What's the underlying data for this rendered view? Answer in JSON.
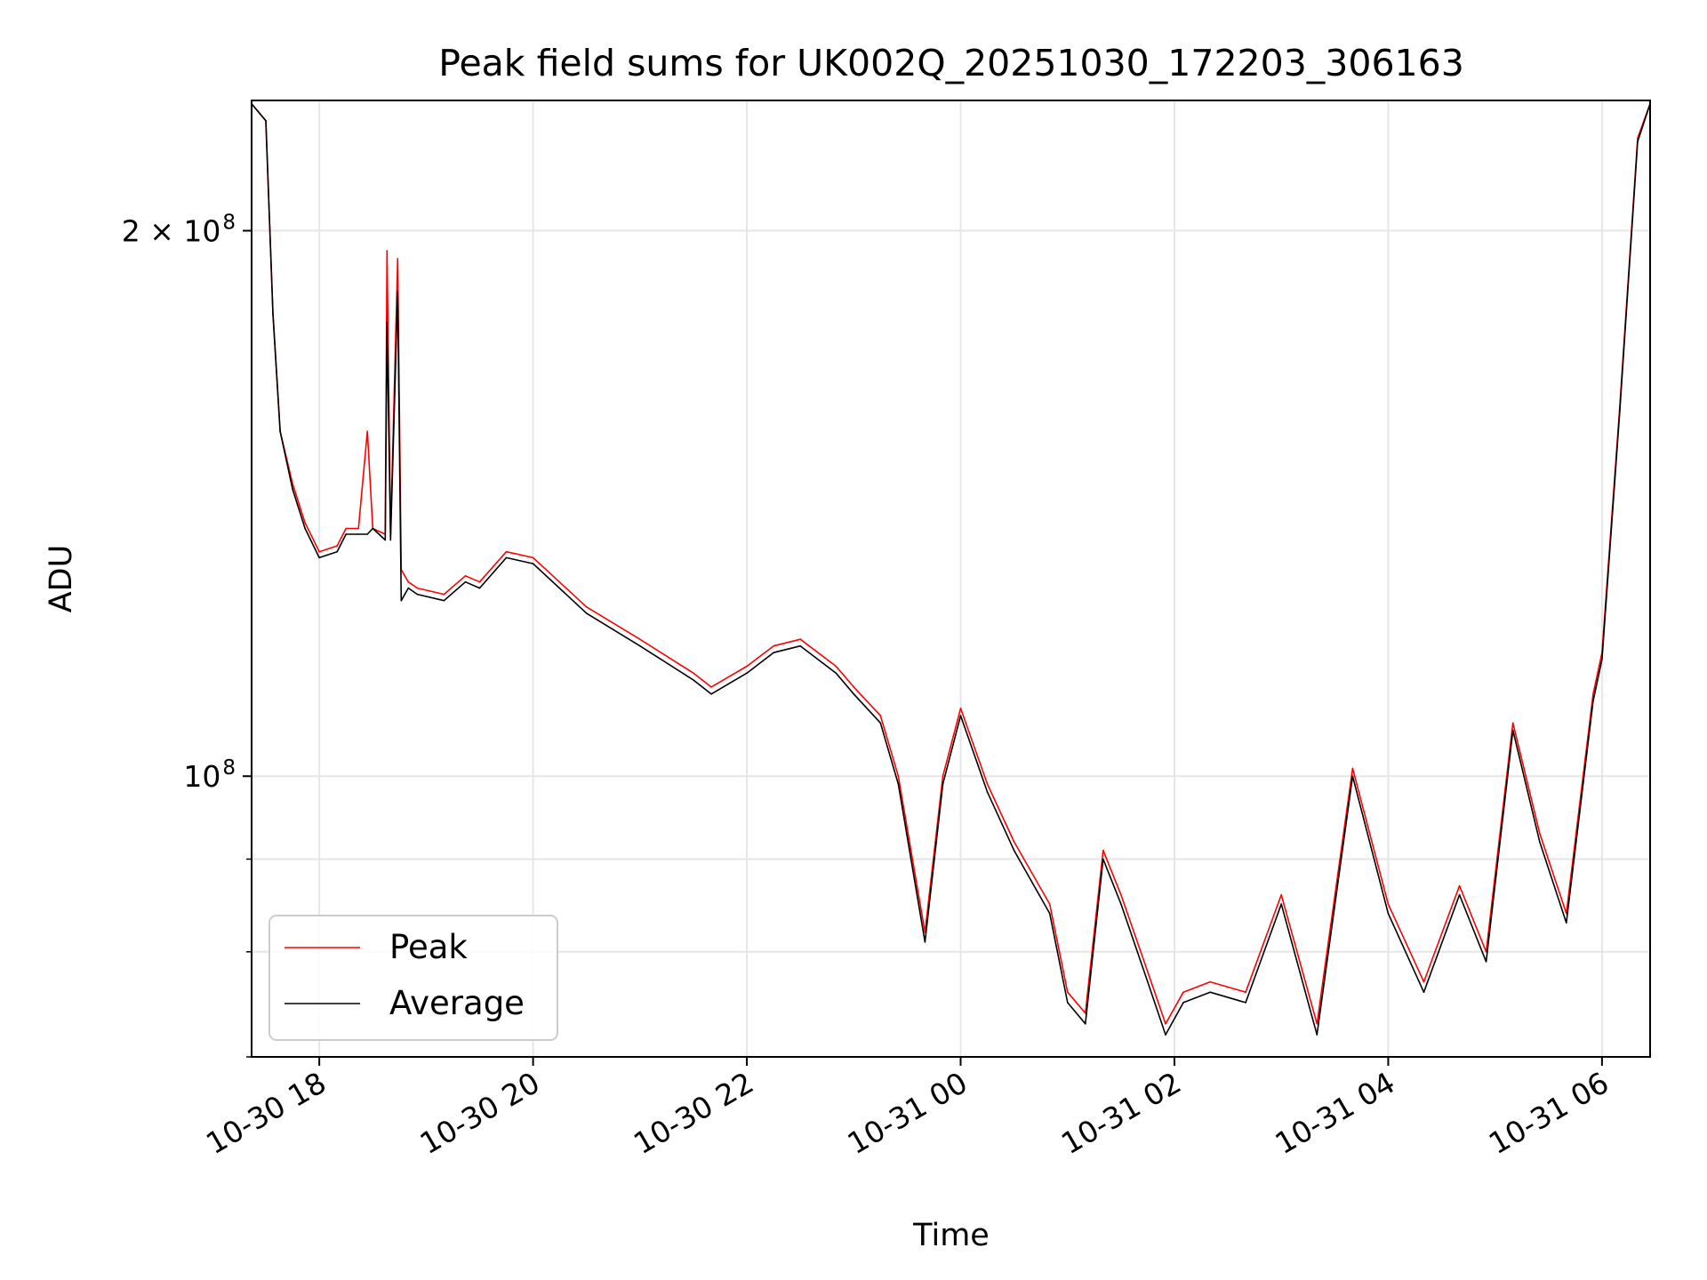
{
  "chart_data": {
    "type": "line",
    "title": "Peak field sums for UK002Q_20251030_172203_306163",
    "xlabel": "Time",
    "ylabel": "ADU",
    "yscale": "log",
    "xlim": [
      "2025-10-30 17:22",
      "2025-10-31 06:27"
    ],
    "ylim": [
      70000000,
      236000000
    ],
    "x_ticks": [
      "10-30 18",
      "10-30 20",
      "10-30 22",
      "10-31 00",
      "10-31 02",
      "10-31 04",
      "10-31 06"
    ],
    "y_ticks": [
      {
        "value": 100000000,
        "label_base": "10",
        "label_exp": "8"
      },
      {
        "value": 200000000,
        "label_base": "2 × 10",
        "label_exp": "8"
      }
    ],
    "y_minor_ticks": [
      70000000,
      80000000,
      90000000
    ],
    "grid": true,
    "legend_position": "lower left",
    "colors": {
      "Peak": "#ff0000",
      "Average": "#000000"
    },
    "series": [
      {
        "name": "Peak",
        "x": [
          "2025-10-30 17:22",
          "2025-10-30 17:30",
          "2025-10-30 17:34",
          "2025-10-30 17:38",
          "2025-10-30 17:45",
          "2025-10-30 17:52",
          "2025-10-30 18:00",
          "2025-10-30 18:10",
          "2025-10-30 18:15",
          "2025-10-30 18:22",
          "2025-10-30 18:27",
          "2025-10-30 18:30",
          "2025-10-30 18:37",
          "2025-10-30 18:38",
          "2025-10-30 18:40",
          "2025-10-30 18:44",
          "2025-10-30 18:46",
          "2025-10-30 18:50",
          "2025-10-30 18:55",
          "2025-10-30 19:10",
          "2025-10-30 19:22",
          "2025-10-30 19:30",
          "2025-10-30 19:45",
          "2025-10-30 20:00",
          "2025-10-30 20:30",
          "2025-10-30 21:00",
          "2025-10-30 21:30",
          "2025-10-30 21:40",
          "2025-10-30 22:00",
          "2025-10-30 22:15",
          "2025-10-30 22:30",
          "2025-10-30 22:50",
          "2025-10-30 23:00",
          "2025-10-30 23:15",
          "2025-10-30 23:25",
          "2025-10-30 23:40",
          "2025-10-30 23:50",
          "2025-10-31 00:00",
          "2025-10-31 00:15",
          "2025-10-31 00:30",
          "2025-10-31 00:50",
          "2025-10-31 01:00",
          "2025-10-31 01:10",
          "2025-10-31 01:20",
          "2025-10-31 01:30",
          "2025-10-31 01:45",
          "2025-10-31 01:55",
          "2025-10-31 02:05",
          "2025-10-31 02:20",
          "2025-10-31 02:40",
          "2025-10-31 03:00",
          "2025-10-31 03:20",
          "2025-10-31 03:40",
          "2025-10-31 04:00",
          "2025-10-31 04:20",
          "2025-10-31 04:40",
          "2025-10-31 04:55",
          "2025-10-31 05:10",
          "2025-10-31 05:25",
          "2025-10-31 05:40",
          "2025-10-31 05:55",
          "2025-10-31 06:00",
          "2025-10-31 06:10",
          "2025-10-31 06:20",
          "2025-10-31 06:27"
        ],
        "y": [
          235000000,
          230000000,
          180000000,
          155000000,
          145000000,
          138000000,
          133000000,
          134000000,
          137000000,
          137000000,
          155000000,
          137000000,
          136000000,
          195000000,
          136000000,
          193000000,
          130000000,
          128000000,
          127000000,
          126000000,
          129000000,
          128000000,
          133000000,
          132000000,
          124000000,
          119000000,
          114000000,
          112000000,
          115000000,
          118000000,
          119000000,
          115000000,
          112000000,
          108000000,
          100000000,
          82000000,
          100000000,
          109000000,
          99000000,
          92000000,
          85000000,
          76000000,
          74000000,
          91000000,
          86000000,
          78000000,
          73000000,
          76000000,
          77000000,
          76000000,
          86000000,
          73000000,
          101000000,
          85000000,
          77000000,
          87000000,
          80000000,
          107000000,
          93000000,
          84000000,
          111000000,
          117000000,
          160000000,
          225000000,
          235000000
        ]
      },
      {
        "name": "Average",
        "x": [
          "2025-10-30 17:22",
          "2025-10-30 17:30",
          "2025-10-30 17:34",
          "2025-10-30 17:38",
          "2025-10-30 17:45",
          "2025-10-30 17:52",
          "2025-10-30 18:00",
          "2025-10-30 18:10",
          "2025-10-30 18:15",
          "2025-10-30 18:22",
          "2025-10-30 18:27",
          "2025-10-30 18:30",
          "2025-10-30 18:37",
          "2025-10-30 18:38",
          "2025-10-30 18:40",
          "2025-10-30 18:44",
          "2025-10-30 18:46",
          "2025-10-30 18:50",
          "2025-10-30 18:55",
          "2025-10-30 19:10",
          "2025-10-30 19:22",
          "2025-10-30 19:30",
          "2025-10-30 19:45",
          "2025-10-30 20:00",
          "2025-10-30 20:30",
          "2025-10-30 21:00",
          "2025-10-30 21:30",
          "2025-10-30 21:40",
          "2025-10-30 22:00",
          "2025-10-30 22:15",
          "2025-10-30 22:30",
          "2025-10-30 22:50",
          "2025-10-30 23:00",
          "2025-10-30 23:15",
          "2025-10-30 23:25",
          "2025-10-30 23:40",
          "2025-10-30 23:50",
          "2025-10-31 00:00",
          "2025-10-31 00:15",
          "2025-10-31 00:30",
          "2025-10-31 00:50",
          "2025-10-31 01:00",
          "2025-10-31 01:10",
          "2025-10-31 01:20",
          "2025-10-31 01:30",
          "2025-10-31 01:45",
          "2025-10-31 01:55",
          "2025-10-31 02:05",
          "2025-10-31 02:20",
          "2025-10-31 02:40",
          "2025-10-31 03:00",
          "2025-10-31 03:20",
          "2025-10-31 03:40",
          "2025-10-31 04:00",
          "2025-10-31 04:20",
          "2025-10-31 04:40",
          "2025-10-31 04:55",
          "2025-10-31 05:10",
          "2025-10-31 05:25",
          "2025-10-31 05:40",
          "2025-10-31 05:55",
          "2025-10-31 06:00",
          "2025-10-31 06:10",
          "2025-10-31 06:20",
          "2025-10-31 06:27"
        ],
        "y": [
          235000000,
          230000000,
          180000000,
          155000000,
          144000000,
          137000000,
          132000000,
          133000000,
          136000000,
          136000000,
          136000000,
          137000000,
          135000000,
          178000000,
          135000000,
          185000000,
          125000000,
          127000000,
          126000000,
          125000000,
          128000000,
          127000000,
          132000000,
          131000000,
          123000000,
          118000000,
          113000000,
          111000000,
          114000000,
          117000000,
          118000000,
          114000000,
          111000000,
          107000000,
          99000000,
          81000000,
          99000000,
          108000000,
          98000000,
          91000000,
          84000000,
          75000000,
          73000000,
          90000000,
          85000000,
          77000000,
          72000000,
          75000000,
          76000000,
          75000000,
          85000000,
          72000000,
          100000000,
          84000000,
          76000000,
          86000000,
          79000000,
          106000000,
          92000000,
          83000000,
          110000000,
          116000000,
          159000000,
          224000000,
          235000000
        ]
      }
    ]
  }
}
